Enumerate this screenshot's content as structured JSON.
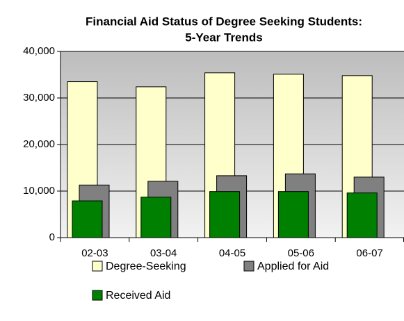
{
  "chart_data": {
    "type": "bar",
    "title": [
      "Financial Aid Status of Degree Seeking Students:",
      "5-Year Trends"
    ],
    "categories": [
      "02-03",
      "03-04",
      "04-05",
      "05-06",
      "06-07"
    ],
    "series": [
      {
        "name": "Degree-Seeking",
        "color": "#ffffcc",
        "values": [
          33500,
          32400,
          35400,
          35100,
          34800
        ]
      },
      {
        "name": "Applied for Aid",
        "color": "#808080",
        "values": [
          11300,
          12100,
          13300,
          13700,
          13000
        ]
      },
      {
        "name": "Received Aid",
        "color": "#008000",
        "values": [
          7900,
          8700,
          9900,
          9900,
          9600
        ]
      }
    ],
    "ylim": [
      0,
      40000
    ],
    "yticks": [
      0,
      {
        "value": 10000,
        "label": "10,000"
      },
      {
        "value": 20000,
        "label": "20,000"
      },
      {
        "value": 30000,
        "label": "30,000"
      },
      {
        "value": 40000,
        "label": "40,000"
      }
    ],
    "grid": true
  }
}
